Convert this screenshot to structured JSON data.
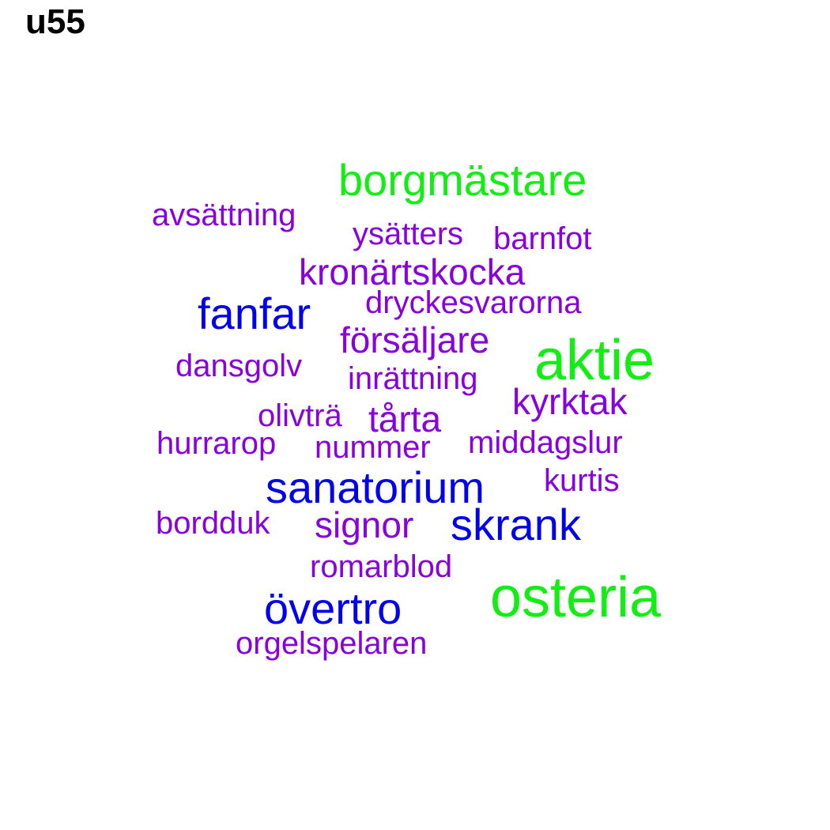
{
  "title": "u55",
  "colors": {
    "green": "#11ee11",
    "blue": "#0000ee",
    "purple": "#8800dd"
  },
  "words": [
    {
      "text": "borgmästare",
      "color": "green"
    },
    {
      "text": "avsättning",
      "color": "purple"
    },
    {
      "text": "ysätters",
      "color": "purple"
    },
    {
      "text": "barnfot",
      "color": "purple"
    },
    {
      "text": "kronärtskocka",
      "color": "purple"
    },
    {
      "text": "fanfar",
      "color": "blue"
    },
    {
      "text": "dryckesvarorna",
      "color": "purple"
    },
    {
      "text": "försäljare",
      "color": "purple"
    },
    {
      "text": "aktie",
      "color": "green"
    },
    {
      "text": "dansgolv",
      "color": "purple"
    },
    {
      "text": "inrättning",
      "color": "purple"
    },
    {
      "text": "kyrktak",
      "color": "purple"
    },
    {
      "text": "olivträ",
      "color": "purple"
    },
    {
      "text": "tårta",
      "color": "purple"
    },
    {
      "text": "hurrarop",
      "color": "purple"
    },
    {
      "text": "nummer",
      "color": "purple"
    },
    {
      "text": "middagslur",
      "color": "purple"
    },
    {
      "text": "sanatorium",
      "color": "blue"
    },
    {
      "text": "kurtis",
      "color": "purple"
    },
    {
      "text": "bordduk",
      "color": "purple"
    },
    {
      "text": "signor",
      "color": "purple"
    },
    {
      "text": "skrank",
      "color": "blue"
    },
    {
      "text": "romarblod",
      "color": "purple"
    },
    {
      "text": "osteria",
      "color": "green"
    },
    {
      "text": "övertro",
      "color": "blue"
    },
    {
      "text": "orgelspelaren",
      "color": "purple"
    }
  ]
}
